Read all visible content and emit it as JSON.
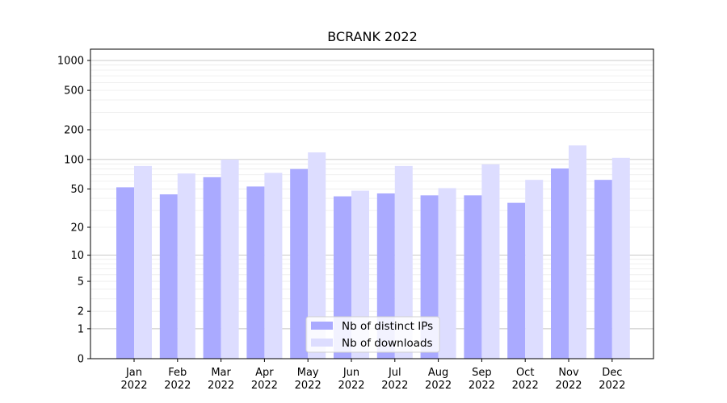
{
  "chart_data": {
    "type": "bar",
    "title": "BCRANK 2022",
    "xlabel": "",
    "ylabel": "",
    "yscale": "log1p",
    "ylim": [
      0,
      1300
    ],
    "yticks": [
      0,
      1,
      2,
      5,
      10,
      20,
      50,
      100,
      200,
      500,
      1000
    ],
    "ytick_labels": [
      "0",
      "1",
      "2",
      "5",
      "10",
      "20",
      "50",
      "100",
      "200",
      "500",
      "1000"
    ],
    "categories": [
      "Jan",
      "Feb",
      "Mar",
      "Apr",
      "May",
      "Jun",
      "Jul",
      "Aug",
      "Sep",
      "Oct",
      "Nov",
      "Dec"
    ],
    "category_year": "2022",
    "grid": true,
    "legend_position": "bottom-center",
    "series": [
      {
        "name": "Nb of distinct IPs",
        "color": "#aaaaff",
        "values": [
          52,
          44,
          66,
          53,
          80,
          42,
          45,
          43,
          43,
          36,
          81,
          62
        ]
      },
      {
        "name": "Nb of downloads",
        "color": "#ddddff",
        "values": [
          86,
          72,
          100,
          73,
          118,
          48,
          86,
          51,
          89,
          62,
          139,
          104
        ]
      }
    ]
  }
}
